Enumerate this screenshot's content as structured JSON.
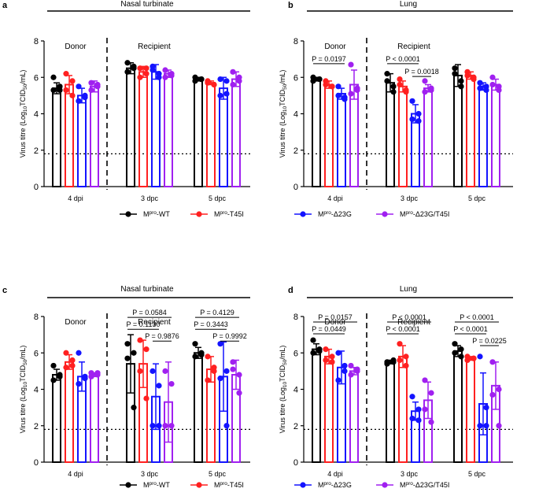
{
  "colors": {
    "WT": "#000000",
    "T45I": "#ff2020",
    "D23G": "#1414ff",
    "D23G_T45I": "#a020f0"
  },
  "legend": [
    {
      "key": "WT",
      "label_main": "M",
      "label_sup": "pro",
      "label_rest": "-WT"
    },
    {
      "key": "T45I",
      "label_main": "M",
      "label_sup": "pro",
      "label_rest": "-T45I"
    },
    {
      "key": "D23G",
      "label_main": "M",
      "label_sup": "pro",
      "label_rest": "-Δ23G"
    },
    {
      "key": "D23G_T45I",
      "label_main": "M",
      "label_sup": "pro",
      "label_rest": "-Δ23G/T45I"
    }
  ],
  "detection_limit": 1.8,
  "chart_data": [
    {
      "panel": "a",
      "type": "bar",
      "title": "Nasal turbinate",
      "ylabel_main": "Virus titre (Log",
      "ylabel_sub1": "10",
      "ylabel_mid": "TCID",
      "ylabel_sub2": "50",
      "ylabel_end": "/mL)",
      "ylim": [
        0,
        8
      ],
      "yticks": [
        "0",
        "2",
        "4",
        "6",
        "8"
      ],
      "categories": [
        "4 dpi",
        "3 dpc",
        "5 dpc"
      ],
      "group_labels": [
        "Donor",
        "Recipient"
      ],
      "series": [
        {
          "name": "WT",
          "values": [
            5.4,
            6.5,
            5.9
          ],
          "errors": [
            0.3,
            0.3,
            0.1
          ],
          "points": [
            [
              6.0,
              5.5,
              5.3,
              5.3
            ],
            [
              6.8,
              6.5,
              6.3,
              6.6
            ],
            [
              6.0,
              5.9,
              5.8,
              5.9
            ]
          ]
        },
        {
          "name": "T45I",
          "values": [
            5.6,
            6.3,
            5.7
          ],
          "errors": [
            0.5,
            0.3,
            0.1
          ],
          "points": [
            [
              6.2,
              5.8,
              5.3,
              5.0
            ],
            [
              6.5,
              6.2,
              6.0,
              6.5
            ],
            [
              5.8,
              5.6,
              5.7,
              5.6
            ]
          ]
        },
        {
          "name": "D23G",
          "values": [
            5.0,
            6.3,
            5.4
          ],
          "errors": [
            0.4,
            0.4,
            0.6
          ],
          "points": [
            [
              5.5,
              5.0,
              4.7,
              4.9
            ],
            [
              6.6,
              6.2,
              6.4,
              6.0
            ],
            [
              5.9,
              5.8,
              5.0,
              5.1
            ]
          ]
        },
        {
          "name": "D23G_T45I",
          "values": [
            5.5,
            6.2,
            5.9
          ],
          "errors": [
            0.3,
            0.2,
            0.4
          ],
          "points": [
            [
              5.7,
              5.5,
              5.3,
              5.6
            ],
            [
              6.4,
              6.2,
              6.0,
              6.1
            ],
            [
              6.3,
              5.8,
              5.6,
              6.0
            ]
          ]
        }
      ],
      "annotations": []
    },
    {
      "panel": "b",
      "type": "bar",
      "title": "Lung",
      "ylabel_main": "Virus titre (Log",
      "ylabel_sub1": "10",
      "ylabel_mid": "TCID",
      "ylabel_sub2": "50",
      "ylabel_end": "/mL)",
      "ylim": [
        0,
        8
      ],
      "yticks": [
        "0",
        "2",
        "4",
        "6",
        "8"
      ],
      "categories": [
        "4 dpi",
        "3 dpc",
        "5 dpc"
      ],
      "group_labels": [
        "Donor",
        "Recipient"
      ],
      "series": [
        {
          "name": "WT",
          "values": [
            5.9,
            5.7,
            6.1
          ],
          "errors": [
            0.1,
            0.5,
            0.6
          ],
          "points": [
            [
              6.0,
              5.9,
              5.8,
              5.9
            ],
            [
              6.2,
              5.5,
              5.8,
              5.2
            ],
            [
              6.5,
              5.5,
              6.2,
              5.8
            ]
          ]
        },
        {
          "name": "T45I",
          "values": [
            5.6,
            5.5,
            6.1
          ],
          "errors": [
            0.2,
            0.3,
            0.2
          ],
          "points": [
            [
              5.8,
              5.5,
              5.6,
              5.5
            ],
            [
              5.9,
              5.3,
              5.6,
              5.2
            ],
            [
              6.3,
              6.0,
              6.1,
              5.9
            ]
          ]
        },
        {
          "name": "D23G",
          "values": [
            5.1,
            4.0,
            5.5
          ],
          "errors": [
            0.3,
            0.5,
            0.2
          ],
          "points": [
            [
              5.5,
              4.9,
              5.0,
              4.8
            ],
            [
              4.7,
              4.0,
              3.7,
              3.6
            ],
            [
              5.7,
              5.5,
              5.4,
              5.3
            ]
          ]
        },
        {
          "name": "D23G_T45I",
          "values": [
            5.6,
            5.4,
            5.6
          ],
          "errors": [
            0.8,
            0.2,
            0.3
          ],
          "points": [
            [
              6.7,
              5.3,
              5.1,
              5.4
            ],
            [
              5.8,
              5.4,
              5.2,
              5.3
            ],
            [
              6.0,
              5.5,
              5.6,
              5.3
            ]
          ]
        }
      ],
      "annotations": [
        {
          "text": "P = 0.0197",
          "from": [
            0,
            "WT"
          ],
          "to": [
            0,
            "D23G"
          ],
          "y": 6.75
        },
        {
          "text": "P < 0.0001",
          "from": [
            1,
            "WT"
          ],
          "to": [
            1,
            "D23G"
          ],
          "y": 6.75
        },
        {
          "text": "P = 0.0018",
          "from": [
            1,
            "D23G"
          ],
          "to": [
            1,
            "D23G_T45I"
          ],
          "y": 6.05
        }
      ]
    },
    {
      "panel": "c",
      "type": "bar",
      "title": "Nasal turbinate",
      "ylabel_main": "Virus titre (Log",
      "ylabel_sub1": "10",
      "ylabel_mid": "TCID",
      "ylabel_sub2": "50",
      "ylabel_end": "/mL)",
      "ylim": [
        0,
        8
      ],
      "yticks": [
        "0",
        "2",
        "4",
        "6",
        "8"
      ],
      "categories": [
        "4 dpi",
        "3 dpc",
        "5 dpc"
      ],
      "group_labels": [
        "Donor",
        "Recipient"
      ],
      "series": [
        {
          "name": "WT",
          "values": [
            4.8,
            5.4,
            6.0
          ],
          "errors": [
            0.3,
            1.6,
            0.3
          ],
          "points": [
            [
              5.3,
              4.8,
              4.5,
              4.7
            ],
            [
              6.5,
              6.0,
              5.7,
              3.0
            ],
            [
              6.5,
              6.0,
              5.8,
              5.9
            ]
          ]
        },
        {
          "name": "T45I",
          "values": [
            5.5,
            5.4,
            5.1
          ],
          "errors": [
            0.4,
            1.3,
            0.7
          ],
          "points": [
            [
              6.0,
              5.6,
              5.2,
              5.3
            ],
            [
              6.7,
              6.2,
              5.0,
              3.5
            ],
            [
              5.8,
              5.0,
              4.5,
              5.2
            ]
          ]
        },
        {
          "name": "D23G",
          "values": [
            4.7,
            3.6,
            4.7
          ],
          "errors": [
            0.8,
            1.8,
            1.9
          ],
          "points": [
            [
              6.0,
              4.7,
              4.3,
              4.6
            ],
            [
              5.0,
              4.2,
              2.0,
              2.0
            ],
            [
              6.5,
              5.0,
              4.6,
              2.0
            ]
          ]
        },
        {
          "name": "D23G_T45I",
          "values": [
            4.8,
            3.3,
            4.8
          ],
          "errors": [
            0.1,
            2.2,
            0.8
          ],
          "points": [
            [
              4.9,
              4.8,
              4.7,
              4.9
            ],
            [
              5.0,
              4.3,
              2.0,
              2.0
            ],
            [
              5.5,
              4.8,
              5.1,
              3.8
            ]
          ]
        }
      ],
      "annotations": [
        {
          "text": "P = 0.0584",
          "from": [
            1,
            "WT"
          ],
          "to": [
            1,
            "D23G_T45I"
          ],
          "y": 7.95
        },
        {
          "text": "P = 0.1130",
          "from": [
            1,
            "WT"
          ],
          "to": [
            1,
            "D23G"
          ],
          "y": 7.3
        },
        {
          "text": "P = 0.9876",
          "from": [
            1,
            "D23G"
          ],
          "to": [
            1,
            "D23G_T45I"
          ],
          "y": 6.65
        },
        {
          "text": "P = 0.4129",
          "from": [
            2,
            "WT"
          ],
          "to": [
            2,
            "D23G_T45I"
          ],
          "y": 7.95
        },
        {
          "text": "P = 0.3443",
          "from": [
            2,
            "WT"
          ],
          "to": [
            2,
            "D23G"
          ],
          "y": 7.3
        },
        {
          "text": "P = 0.9992",
          "from": [
            2,
            "D23G"
          ],
          "to": [
            2,
            "D23G_T45I"
          ],
          "y": 6.65
        }
      ]
    },
    {
      "panel": "d",
      "type": "bar",
      "title": "Lung",
      "ylabel_main": "Virus titre (Log",
      "ylabel_sub1": "10",
      "ylabel_mid": "TCID",
      "ylabel_sub2": "50",
      "ylabel_end": "/mL)",
      "ylim": [
        0,
        8
      ],
      "yticks": [
        "0",
        "2",
        "4",
        "6",
        "8"
      ],
      "categories": [
        "4 dpi",
        "3 dpc",
        "5 dpc"
      ],
      "group_labels": [
        "Donor",
        "Recipient"
      ],
      "series": [
        {
          "name": "WT",
          "values": [
            6.2,
            5.5,
            6.1
          ],
          "errors": [
            0.3,
            0.1,
            0.3
          ],
          "points": [
            [
              6.7,
              6.2,
              6.0,
              6.1
            ],
            [
              5.5,
              5.6,
              5.4,
              5.5
            ],
            [
              6.5,
              6.2,
              6.0,
              5.8
            ]
          ]
        },
        {
          "name": "T45I",
          "values": [
            5.8,
            5.8,
            5.7
          ],
          "errors": [
            0.4,
            0.6,
            0.1
          ],
          "points": [
            [
              6.2,
              5.8,
              5.6,
              5.5
            ],
            [
              6.5,
              5.8,
              5.6,
              5.3
            ],
            [
              5.8,
              5.7,
              5.6,
              5.7
            ]
          ]
        },
        {
          "name": "D23G",
          "values": [
            5.2,
            2.8,
            3.2
          ],
          "errors": [
            0.9,
            0.5,
            1.7
          ],
          "points": [
            [
              6.0,
              5.3,
              4.5,
              5.0
            ],
            [
              3.6,
              2.9,
              2.4,
              2.3
            ],
            [
              5.8,
              3.0,
              2.0,
              2.0
            ]
          ]
        },
        {
          "name": "D23G_T45I",
          "values": [
            5.0,
            3.4,
            4.2
          ],
          "errors": [
            0.2,
            1.0,
            1.3
          ],
          "points": [
            [
              5.3,
              5.0,
              4.8,
              5.1
            ],
            [
              4.5,
              3.8,
              2.9,
              2.2
            ],
            [
              5.5,
              4.0,
              3.7,
              2.0
            ]
          ]
        }
      ],
      "annotations": [
        {
          "text": "P = 0.0157",
          "from": [
            0,
            "WT"
          ],
          "to": [
            0,
            "D23G_T45I"
          ],
          "y": 7.7
        },
        {
          "text": "P = 0.0449",
          "from": [
            0,
            "WT"
          ],
          "to": [
            0,
            "D23G"
          ],
          "y": 7.05
        },
        {
          "text": "P < 0.0001",
          "from": [
            1,
            "WT"
          ],
          "to": [
            1,
            "D23G_T45I"
          ],
          "y": 7.7
        },
        {
          "text": "P < 0.0001",
          "from": [
            1,
            "WT"
          ],
          "to": [
            1,
            "D23G"
          ],
          "y": 7.05
        },
        {
          "text": "P < 0.0001",
          "from": [
            2,
            "WT"
          ],
          "to": [
            2,
            "D23G_T45I"
          ],
          "y": 7.7
        },
        {
          "text": "P < 0.0001",
          "from": [
            2,
            "WT"
          ],
          "to": [
            2,
            "D23G"
          ],
          "y": 7.05
        },
        {
          "text": "P = 0.0225",
          "from": [
            2,
            "D23G"
          ],
          "to": [
            2,
            "D23G_T45I"
          ],
          "y": 6.4
        }
      ]
    }
  ]
}
